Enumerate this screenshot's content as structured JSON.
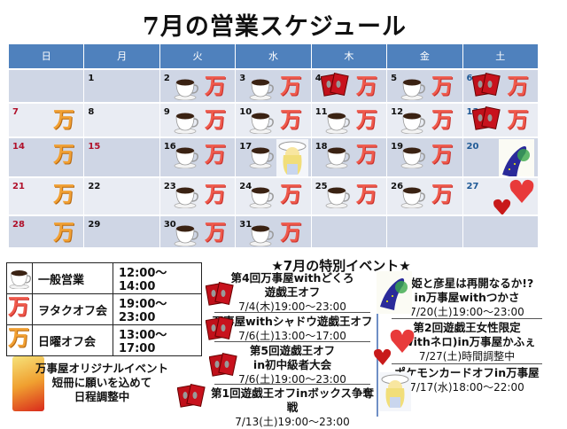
{
  "title": "7月の営業スケジュール",
  "weekdays": [
    "日",
    "月",
    "火",
    "水",
    "木",
    "金",
    "土"
  ],
  "icon_char": "万",
  "weeks": [
    [
      null,
      {
        "d": "1",
        "i": []
      },
      {
        "d": "2",
        "i": [
          "coffee",
          "man"
        ]
      },
      {
        "d": "3",
        "i": [
          "coffee",
          "man"
        ]
      },
      {
        "d": "4",
        "i": [
          "cards",
          "man"
        ]
      },
      {
        "d": "5",
        "i": [
          "coffee",
          "man"
        ]
      },
      {
        "d": "6",
        "i": [
          "cards",
          "man"
        ]
      }
    ],
    [
      {
        "d": "7",
        "i": [
          "sun"
        ]
      },
      {
        "d": "8",
        "i": []
      },
      {
        "d": "9",
        "i": [
          "coffee",
          "man"
        ]
      },
      {
        "d": "10",
        "i": [
          "coffee",
          "man"
        ]
      },
      {
        "d": "11",
        "i": [
          "coffee",
          "man"
        ]
      },
      {
        "d": "12",
        "i": [
          "coffee",
          "man"
        ]
      },
      {
        "d": "13",
        "i": [
          "cards",
          "man"
        ]
      }
    ],
    [
      {
        "d": "14",
        "i": [
          "sun"
        ]
      },
      {
        "d": "15",
        "i": [],
        "holiday": true
      },
      {
        "d": "16",
        "i": [
          "coffee",
          "man"
        ]
      },
      {
        "d": "17",
        "i": [
          "coffee",
          "girl"
        ]
      },
      {
        "d": "18",
        "i": [
          "coffee",
          "man"
        ]
      },
      {
        "d": "19",
        "i": [
          "coffee",
          "man"
        ]
      },
      {
        "d": "20",
        "i": [
          "tanabata"
        ]
      }
    ],
    [
      {
        "d": "21",
        "i": [
          "sun"
        ]
      },
      {
        "d": "22",
        "i": []
      },
      {
        "d": "23",
        "i": [
          "coffee",
          "man"
        ]
      },
      {
        "d": "24",
        "i": [
          "coffee",
          "man"
        ]
      },
      {
        "d": "25",
        "i": [
          "coffee",
          "man"
        ]
      },
      {
        "d": "26",
        "i": [
          "coffee",
          "man"
        ]
      },
      {
        "d": "27",
        "i": [
          "hearts"
        ]
      }
    ],
    [
      {
        "d": "28",
        "i": [
          "sun"
        ]
      },
      {
        "d": "29",
        "i": []
      },
      {
        "d": "30",
        "i": [
          "coffee",
          "man"
        ]
      },
      {
        "d": "31",
        "i": [
          "coffee",
          "man"
        ]
      },
      null,
      null,
      null
    ]
  ],
  "legend": [
    {
      "icon": "coffee",
      "label": "一般営業",
      "time": "12:00～14:00"
    },
    {
      "icon": "man-red",
      "label": "ヲタクオフ会",
      "time": "19:00～23:00"
    },
    {
      "icon": "man-sun",
      "label": "日曜オフ会",
      "time": "13:00～17:00"
    }
  ],
  "original_event": [
    "万事屋オリジナルイベント",
    "短冊に願いを込めて",
    "日程調整中"
  ],
  "special_title": "★7月の特別イベント★",
  "events_left": [
    {
      "name": [
        "第4回万事屋withどくろ",
        "遊戯王オフ"
      ],
      "date": "7/4(木)19:00～23:00"
    },
    {
      "name": [
        "万事屋withシャドウ遊戯王オフ"
      ],
      "date": "7/6(土)13:00～17:00"
    },
    {
      "name": [
        "第5回遊戯王オフ",
        "in初中級者大会"
      ],
      "date": "7/6(土)19:00～23:00"
    },
    {
      "name": [
        "第1回遊戯王オフinボックス争奪戦"
      ],
      "date": "7/13(土)19:00～23:00"
    }
  ],
  "events_right": [
    {
      "name": [
        "織姫と彦星は再開なるか!?",
        "in万事屋withつかさ"
      ],
      "date": "7/20(土)19:00～23:00"
    },
    {
      "name": [
        "第2回遊戯王女性限定",
        "(withネロ)in万事屋かふぇ"
      ],
      "date": "7/27(土)時間調整中"
    },
    {
      "name": [
        "ポケモンカードオフin万事屋"
      ],
      "date": "7/17(水)18:00～22:00"
    }
  ],
  "colors": {
    "header": "#4f81bd",
    "row_dark": "#cfd6e5",
    "row_light": "#e9ecf3",
    "sunday": "#b0102a",
    "saturday": "#1f5a96"
  }
}
